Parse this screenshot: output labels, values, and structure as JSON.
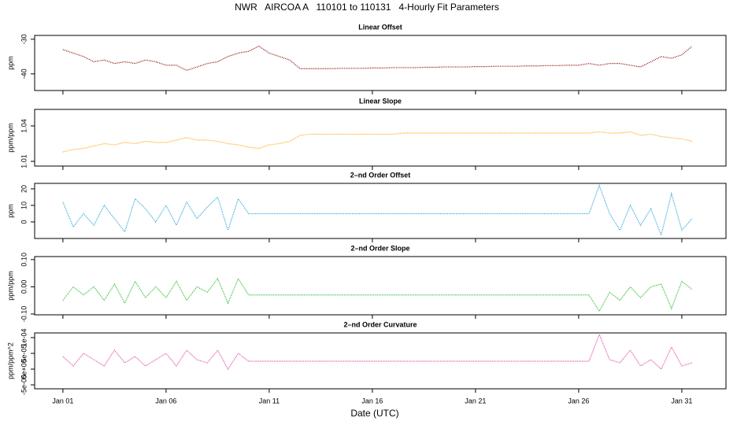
{
  "chart_data": {
    "type": "line",
    "title": "NWR   AIRCOA A   110101 to 110131   4-Hourly Fit Parameters",
    "xlabel": "Date (UTC)",
    "x": [
      1,
      1.5,
      2,
      2.5,
      3,
      3.5,
      4,
      4.5,
      5,
      5.5,
      6,
      6.5,
      7,
      7.5,
      8,
      8.5,
      9,
      9.5,
      10,
      10.5,
      11,
      11.5,
      12,
      12.5,
      13,
      13.5,
      14,
      14.5,
      15,
      15.5,
      16,
      16.5,
      17,
      17.5,
      18,
      18.5,
      19,
      19.5,
      20,
      20.5,
      21,
      21.5,
      22,
      22.5,
      23,
      23.5,
      24,
      24.5,
      25,
      25.5,
      26,
      26.5,
      27,
      27.5,
      28,
      28.5,
      29,
      29.5,
      30,
      30.5,
      31,
      31.5
    ],
    "xlim": [
      -0.37,
      33.14
    ],
    "xticks": [
      {
        "value": 1,
        "label": "Jan 01"
      },
      {
        "value": 6,
        "label": "Jan 06"
      },
      {
        "value": 11,
        "label": "Jan 11"
      },
      {
        "value": 16,
        "label": "Jan 16"
      },
      {
        "value": 21,
        "label": "Jan 21"
      },
      {
        "value": 26,
        "label": "Jan 26"
      },
      {
        "value": 31,
        "label": "Jan 31"
      }
    ],
    "panels": [
      {
        "title": "Linear Offset",
        "ylabel": "ppm",
        "color": "#8b0000",
        "ylim": [
          -44.8,
          -28.9
        ],
        "yticks": [
          -30,
          -40
        ],
        "values": [
          -33,
          -34,
          -35,
          -36.5,
          -36,
          -37,
          -36.5,
          -37,
          -36,
          -36.5,
          -37.5,
          -37.5,
          -39,
          -38,
          -37,
          -36.5,
          -35,
          -34,
          -33.5,
          -32,
          -34,
          -35,
          -36,
          -38.5,
          -38.5,
          -38.5,
          -38.5,
          -38.4,
          -38.4,
          -38.4,
          -38.3,
          -38.3,
          -38.2,
          -38.2,
          -38.2,
          -38.1,
          -38.1,
          -38,
          -38,
          -38,
          -37.9,
          -37.9,
          -37.8,
          -37.8,
          -37.8,
          -37.7,
          -37.7,
          -37.6,
          -37.6,
          -37.5,
          -37.5,
          -37,
          -37.5,
          -37,
          -37,
          -37.5,
          -38,
          -36.5,
          -35,
          -35.5,
          -34.5,
          -32
        ]
      },
      {
        "title": "Linear Slope",
        "ylabel": "ppm/ppm",
        "color": "#ffa500",
        "ylim": [
          1.006,
          1.054
        ],
        "yticks": [
          1.01,
          1.04
        ],
        "values": [
          1.018,
          1.02,
          1.021,
          1.023,
          1.025,
          1.024,
          1.026,
          1.025,
          1.027,
          1.026,
          1.026,
          1.028,
          1.03,
          1.028,
          1.028,
          1.027,
          1.025,
          1.024,
          1.022,
          1.021,
          1.024,
          1.025,
          1.027,
          1.032,
          1.033,
          1.033,
          1.033,
          1.033,
          1.033,
          1.033,
          1.033,
          1.033,
          1.033,
          1.034,
          1.034,
          1.034,
          1.034,
          1.034,
          1.034,
          1.034,
          1.034,
          1.034,
          1.034,
          1.034,
          1.034,
          1.034,
          1.034,
          1.034,
          1.034,
          1.034,
          1.034,
          1.034,
          1.035,
          1.034,
          1.034,
          1.035,
          1.032,
          1.033,
          1.031,
          1.03,
          1.029,
          1.027
        ]
      },
      {
        "title": "2–nd Order Offset",
        "ylabel": "ppm",
        "color": "#1e9fd8",
        "ylim": [
          -10,
          23.3
        ],
        "yticks": [
          0,
          10,
          20
        ],
        "values": [
          12,
          -3,
          5,
          -2,
          10,
          2,
          -6,
          14,
          8,
          0,
          10,
          -2,
          12,
          2,
          9,
          15,
          -5,
          14,
          5,
          5,
          5,
          5,
          5,
          5,
          5,
          5,
          5,
          5,
          5,
          5,
          5,
          5,
          5,
          5,
          5,
          5,
          5,
          5,
          5,
          5,
          5,
          5,
          5,
          5,
          5,
          5,
          5,
          5,
          5,
          5,
          5,
          5,
          22,
          5,
          -5,
          10,
          -2,
          8,
          -8,
          17,
          -5,
          2
        ]
      },
      {
        "title": "2–nd Order Slope",
        "ylabel": "ppm/ppm",
        "color": "#22b922",
        "ylim": [
          -0.103,
          0.111
        ],
        "yticks": [
          {
            "value": 0.1,
            "label": "0.10"
          },
          {
            "value": 0,
            "label": "0.00"
          },
          {
            "value": -0.1,
            "label": "-0.10"
          }
        ],
        "values": [
          -0.05,
          0,
          -0.03,
          0,
          -0.05,
          0.01,
          -0.06,
          0.02,
          -0.04,
          0,
          -0.04,
          0.02,
          -0.05,
          0,
          -0.02,
          0.03,
          -0.06,
          0.03,
          -0.03,
          -0.03,
          -0.03,
          -0.03,
          -0.03,
          -0.03,
          -0.03,
          -0.03,
          -0.03,
          -0.03,
          -0.03,
          -0.03,
          -0.03,
          -0.03,
          -0.03,
          -0.03,
          -0.03,
          -0.03,
          -0.03,
          -0.03,
          -0.03,
          -0.03,
          -0.03,
          -0.03,
          -0.03,
          -0.03,
          -0.03,
          -0.03,
          -0.03,
          -0.03,
          -0.03,
          -0.03,
          -0.03,
          -0.03,
          -0.09,
          -0.02,
          -0.05,
          0,
          -0.04,
          0,
          0.01,
          -0.08,
          0.02,
          -0.01
        ]
      },
      {
        "title": "2–nd Order Curvature",
        "ylabel": "ppm/ppm^2",
        "color": "#e0409a",
        "ylim": [
          -6.25e-05,
          0.000115
        ],
        "yticks": [
          {
            "value": 0.0001,
            "label": "1e-04"
          },
          {
            "value": 5e-05,
            "label": "5e-05"
          },
          {
            "value": 0,
            "label": "0e+00"
          },
          {
            "value": -5e-05,
            "label": "-5e-05"
          }
        ],
        "values": [
          4e-05,
          1e-05,
          5e-05,
          3e-05,
          1e-05,
          6e-05,
          2e-05,
          4e-05,
          1e-05,
          3e-05,
          5e-05,
          1e-05,
          6e-05,
          3e-05,
          2e-05,
          6e-05,
          0,
          5e-05,
          2.5e-05,
          2.5e-05,
          2.5e-05,
          2.5e-05,
          2.5e-05,
          2.5e-05,
          2.5e-05,
          2.5e-05,
          2.5e-05,
          2.5e-05,
          2.5e-05,
          2.5e-05,
          2.5e-05,
          2.5e-05,
          2.5e-05,
          2.5e-05,
          2.5e-05,
          2.5e-05,
          2.5e-05,
          2.5e-05,
          2.5e-05,
          2.5e-05,
          2.5e-05,
          2.5e-05,
          2.5e-05,
          2.5e-05,
          2.5e-05,
          2.5e-05,
          2.5e-05,
          2.5e-05,
          2.5e-05,
          2.5e-05,
          2.5e-05,
          2.5e-05,
          0.00011,
          3e-05,
          2e-05,
          6e-05,
          1e-05,
          3e-05,
          0,
          7e-05,
          1e-05,
          2e-05
        ]
      }
    ]
  }
}
